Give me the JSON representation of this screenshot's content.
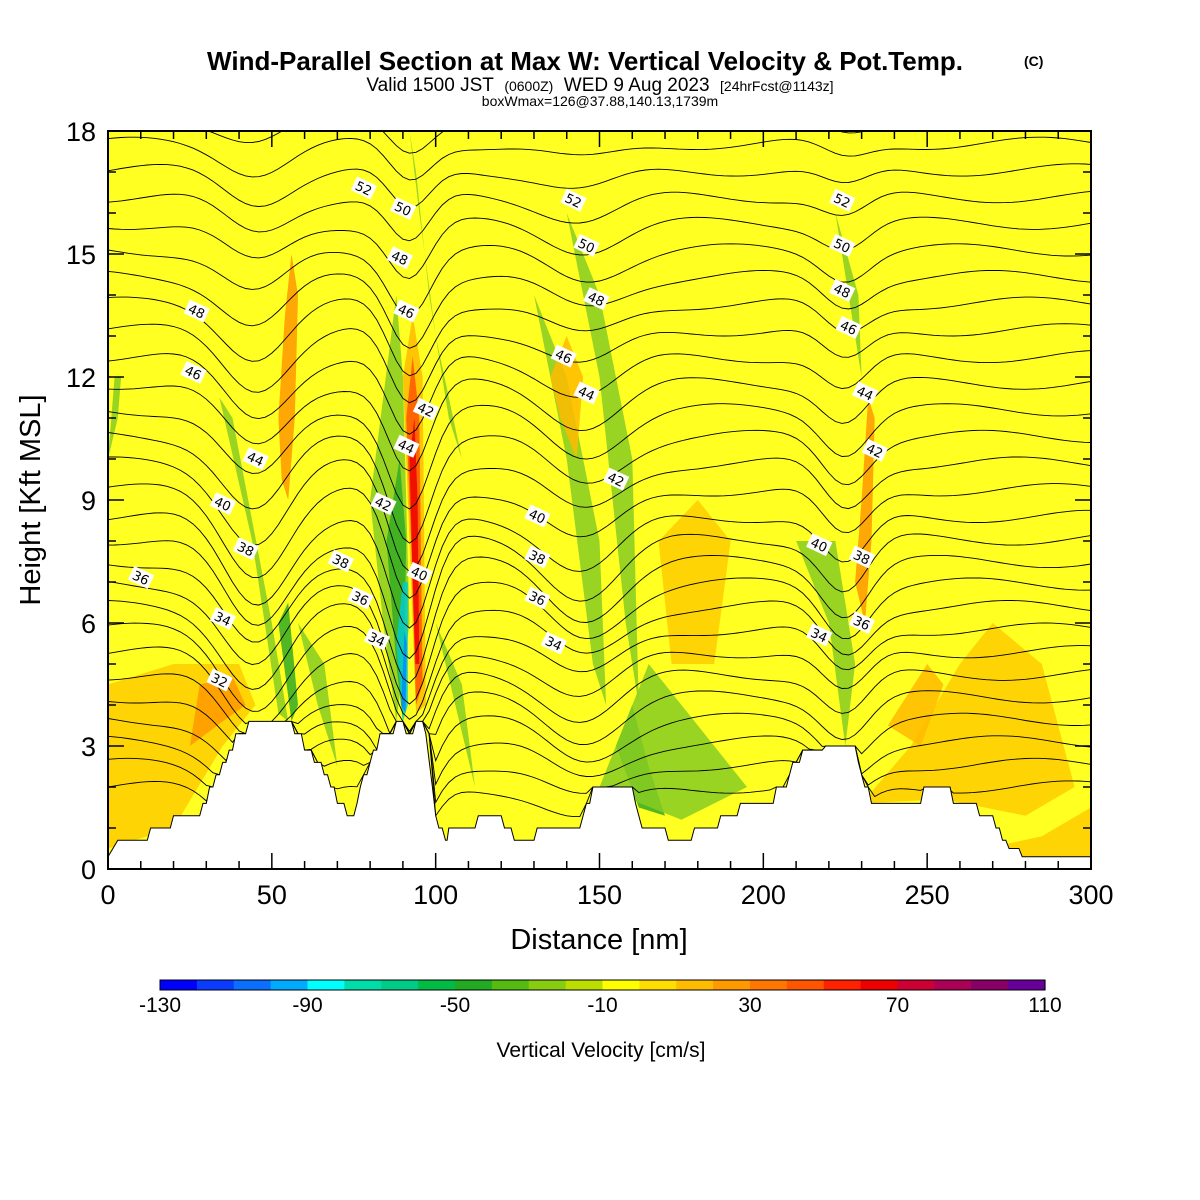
{
  "title": "Wind-Parallel Section at Max W: Vertical Velocity & Pot.Temp.",
  "title_mark": "(C)",
  "subtitle_main": "Valid 1500 JST",
  "subtitle_utc": "(0600Z)",
  "subtitle_date": "WED 9 Aug 2023",
  "subtitle_fcst": "[24hrFcst@1143z]",
  "subtitle3": "boxWmax=126@37.88,140.13,1739m",
  "chart_data": {
    "type": "heatmap",
    "xlabel": "Distance [nm]",
    "ylabel": "Height [Kft MSL]",
    "xlim": [
      0,
      300
    ],
    "ylim": [
      0,
      18
    ],
    "x_ticks": [
      "0",
      "50",
      "100",
      "150",
      "200",
      "250",
      "300"
    ],
    "y_ticks": [
      "0",
      "3",
      "6",
      "9",
      "12",
      "15",
      "18"
    ],
    "colorbar": {
      "label": "Vertical Velocity [cm/s]",
      "tick_labels": [
        "-130",
        "-90",
        "-50",
        "-10",
        "30",
        "70",
        "110"
      ],
      "colors": [
        "#0000ff",
        "#0a3cff",
        "#0a6eff",
        "#00aaff",
        "#00ffff",
        "#00ddaa",
        "#00cc88",
        "#00bb44",
        "#22aa22",
        "#55bb11",
        "#88cc11",
        "#bbdd00",
        "#ffff00",
        "#ffdd00",
        "#ffbb00",
        "#ff9900",
        "#ff7700",
        "#ff5500",
        "#ff2200",
        "#ee0000",
        "#cc0033",
        "#aa0055",
        "#880066",
        "#660099"
      ]
    },
    "theta_contour_labels": [
      {
        "value": "52",
        "x": 78,
        "y": 16.6
      },
      {
        "value": "52",
        "x": 142,
        "y": 16.3
      },
      {
        "value": "52",
        "x": 224,
        "y": 16.3
      },
      {
        "value": "50",
        "x": 90,
        "y": 16.1
      },
      {
        "value": "50",
        "x": 146,
        "y": 15.2
      },
      {
        "value": "50",
        "x": 224,
        "y": 15.2
      },
      {
        "value": "48",
        "x": 27,
        "y": 13.6
      },
      {
        "value": "48",
        "x": 89,
        "y": 14.9
      },
      {
        "value": "48",
        "x": 149,
        "y": 13.9
      },
      {
        "value": "48",
        "x": 224,
        "y": 14.1
      },
      {
        "value": "46",
        "x": 26,
        "y": 12.1
      },
      {
        "value": "46",
        "x": 91,
        "y": 13.6
      },
      {
        "value": "46",
        "x": 139,
        "y": 12.5
      },
      {
        "value": "46",
        "x": 226,
        "y": 13.2
      },
      {
        "value": "44",
        "x": 45,
        "y": 10.0
      },
      {
        "value": "44",
        "x": 91,
        "y": 10.3
      },
      {
        "value": "44",
        "x": 146,
        "y": 11.6
      },
      {
        "value": "44",
        "x": 231,
        "y": 11.6
      },
      {
        "value": "42",
        "x": 97,
        "y": 11.2
      },
      {
        "value": "42",
        "x": 84,
        "y": 8.9
      },
      {
        "value": "42",
        "x": 155,
        "y": 9.5
      },
      {
        "value": "42",
        "x": 234,
        "y": 10.2
      },
      {
        "value": "40",
        "x": 35,
        "y": 8.9
      },
      {
        "value": "40",
        "x": 95,
        "y": 7.2
      },
      {
        "value": "40",
        "x": 131,
        "y": 8.6
      },
      {
        "value": "40",
        "x": 217,
        "y": 7.9
      },
      {
        "value": "38",
        "x": 42,
        "y": 7.8
      },
      {
        "value": "38",
        "x": 71,
        "y": 7.5
      },
      {
        "value": "38",
        "x": 131,
        "y": 7.6
      },
      {
        "value": "38",
        "x": 230,
        "y": 7.6
      },
      {
        "value": "36",
        "x": 10,
        "y": 7.1
      },
      {
        "value": "36",
        "x": 77,
        "y": 6.6
      },
      {
        "value": "36",
        "x": 131,
        "y": 6.6
      },
      {
        "value": "36",
        "x": 230,
        "y": 6.0
      },
      {
        "value": "34",
        "x": 35,
        "y": 6.1
      },
      {
        "value": "34",
        "x": 82,
        "y": 5.6
      },
      {
        "value": "34",
        "x": 136,
        "y": 5.5
      },
      {
        "value": "34",
        "x": 217,
        "y": 5.7
      },
      {
        "value": "32",
        "x": 34,
        "y": 4.6
      }
    ],
    "terrain_kft": [
      [
        0,
        0.3
      ],
      [
        3,
        0.7
      ],
      [
        12,
        0.7
      ],
      [
        13,
        1
      ],
      [
        19,
        1
      ],
      [
        20,
        1.3
      ],
      [
        28,
        1.3
      ],
      [
        29,
        1.6
      ],
      [
        30,
        1.6
      ],
      [
        31,
        2
      ],
      [
        32,
        2
      ],
      [
        33,
        2.3
      ],
      [
        34,
        2.3
      ],
      [
        35,
        2.6
      ],
      [
        36,
        2.6
      ],
      [
        37,
        2.9
      ],
      [
        38,
        2.9
      ],
      [
        39,
        3.3
      ],
      [
        42,
        3.3
      ],
      [
        43,
        3.6
      ],
      [
        56,
        3.6
      ],
      [
        57,
        3.3
      ],
      [
        59,
        3.3
      ],
      [
        60,
        2.9
      ],
      [
        62,
        2.9
      ],
      [
        63,
        2.6
      ],
      [
        65,
        2.6
      ],
      [
        66,
        2.3
      ],
      [
        67,
        2.3
      ],
      [
        68,
        2.0
      ],
      [
        69,
        2.0
      ],
      [
        70,
        1.6
      ],
      [
        72,
        1.6
      ],
      [
        73,
        1.3
      ],
      [
        75,
        1.3
      ],
      [
        76,
        1.6
      ],
      [
        77,
        2.0
      ],
      [
        78,
        2.3
      ],
      [
        79,
        2.3
      ],
      [
        80,
        2.6
      ],
      [
        81,
        2.9
      ],
      [
        82,
        2.9
      ],
      [
        83,
        3.3
      ],
      [
        87,
        3.3
      ],
      [
        88,
        3.6
      ],
      [
        90,
        3.6
      ],
      [
        91,
        3.3
      ],
      [
        93,
        3.3
      ],
      [
        94,
        3.6
      ],
      [
        96,
        3.6
      ],
      [
        97,
        3.3
      ],
      [
        99,
        2.0
      ],
      [
        100,
        1.3
      ],
      [
        101,
        1.0
      ],
      [
        102,
        1.0
      ],
      [
        103,
        0.7
      ],
      [
        103.5,
        0.7
      ],
      [
        104,
        1
      ],
      [
        112,
        1
      ],
      [
        113,
        1.3
      ],
      [
        120,
        1.3
      ],
      [
        121,
        1.0
      ],
      [
        123,
        1.0
      ],
      [
        124,
        0.7
      ],
      [
        130,
        0.7
      ],
      [
        131,
        1
      ],
      [
        144,
        1
      ],
      [
        145,
        1.3
      ],
      [
        146,
        1.6
      ],
      [
        147,
        1.6
      ],
      [
        148,
        2.0
      ],
      [
        160,
        2.0
      ],
      [
        161,
        1.6
      ],
      [
        162,
        1.3
      ],
      [
        163,
        1.0
      ],
      [
        170,
        1.0
      ],
      [
        171,
        0.7
      ],
      [
        178,
        0.7
      ],
      [
        179,
        1
      ],
      [
        186,
        1
      ],
      [
        187,
        1.3
      ],
      [
        192,
        1.3
      ],
      [
        193,
        1.6
      ],
      [
        203,
        1.6
      ],
      [
        204,
        2.0
      ],
      [
        207,
        2.0
      ],
      [
        208,
        2.3
      ],
      [
        209,
        2.6
      ],
      [
        211,
        2.6
      ],
      [
        212,
        2.9
      ],
      [
        218,
        2.9
      ],
      [
        219,
        3.0
      ],
      [
        228,
        3.0
      ],
      [
        229,
        2.6
      ],
      [
        230,
        2.3
      ],
      [
        231,
        2.0
      ],
      [
        232,
        2.0
      ],
      [
        233,
        1.6
      ],
      [
        248,
        1.6
      ],
      [
        249,
        2.0
      ],
      [
        257,
        2.0
      ],
      [
        258,
        1.6
      ],
      [
        265,
        1.6
      ],
      [
        266,
        1.3
      ],
      [
        270,
        1.3
      ],
      [
        271,
        1.0
      ],
      [
        272,
        1.0
      ],
      [
        273,
        0.7
      ],
      [
        274,
        0.7
      ],
      [
        275,
        0.5
      ],
      [
        278,
        0.5
      ],
      [
        279,
        0.3
      ],
      [
        300,
        0.3
      ]
    ]
  }
}
